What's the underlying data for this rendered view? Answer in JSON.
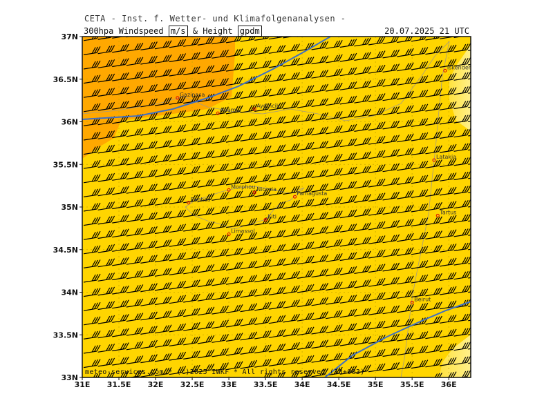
{
  "header": {
    "title": "CETA - Inst. f. Wetter- und Klimafolgenanalysen -",
    "param_name": "300hpa Windspeed",
    "unit_speed": "m/s",
    "amp": "& Height",
    "unit_height": "gpdm",
    "valid_time": "20.07.2025 21 UTC"
  },
  "map": {
    "lon_ticks": [
      "31E",
      "31.5E",
      "32E",
      "32.5E",
      "33E",
      "33.5E",
      "34E",
      "34.5E",
      "35E",
      "35.5E",
      "36E"
    ],
    "lat_ticks": [
      "37N",
      "36.5N",
      "36N",
      "35.5N",
      "35N",
      "34.5N",
      "34N",
      "33.5N",
      "33N"
    ],
    "colors": {
      "background": "#FFD500",
      "orange_zone": "#FFA800",
      "light_zone": "#FFEE70",
      "contour_line": "#3E6FC4",
      "barb": "#000000",
      "border": "#999999"
    },
    "cities": [
      {
        "name": "Gazipasa",
        "lon": 32.3,
        "lat": 36.28
      },
      {
        "name": "Anamur",
        "lon": 32.85,
        "lat": 36.1
      },
      {
        "name": "Aydincik",
        "lon": 33.35,
        "lat": 36.15
      },
      {
        "name": "Iskenderun",
        "lon": 35.95,
        "lat": 36.6
      },
      {
        "name": "Latakia",
        "lon": 35.8,
        "lat": 35.55
      },
      {
        "name": "Morphou",
        "lon": 33.0,
        "lat": 35.2
      },
      {
        "name": "Nicosia",
        "lon": 33.35,
        "lat": 35.17
      },
      {
        "name": "Famagusta",
        "lon": 33.9,
        "lat": 35.12
      },
      {
        "name": "Paphos",
        "lon": 32.45,
        "lat": 35.05
      },
      {
        "name": "Kiti",
        "lon": 33.5,
        "lat": 34.85
      },
      {
        "name": "Limassol",
        "lon": 33.0,
        "lat": 34.68
      },
      {
        "name": "Tartus",
        "lon": 35.85,
        "lat": 34.9
      },
      {
        "name": "Beirut",
        "lon": 35.5,
        "lat": 33.88
      }
    ]
  },
  "footer": {
    "text": "meteo-services.com * (c)2025 IWKF * All rights reserved (18+003)"
  }
}
